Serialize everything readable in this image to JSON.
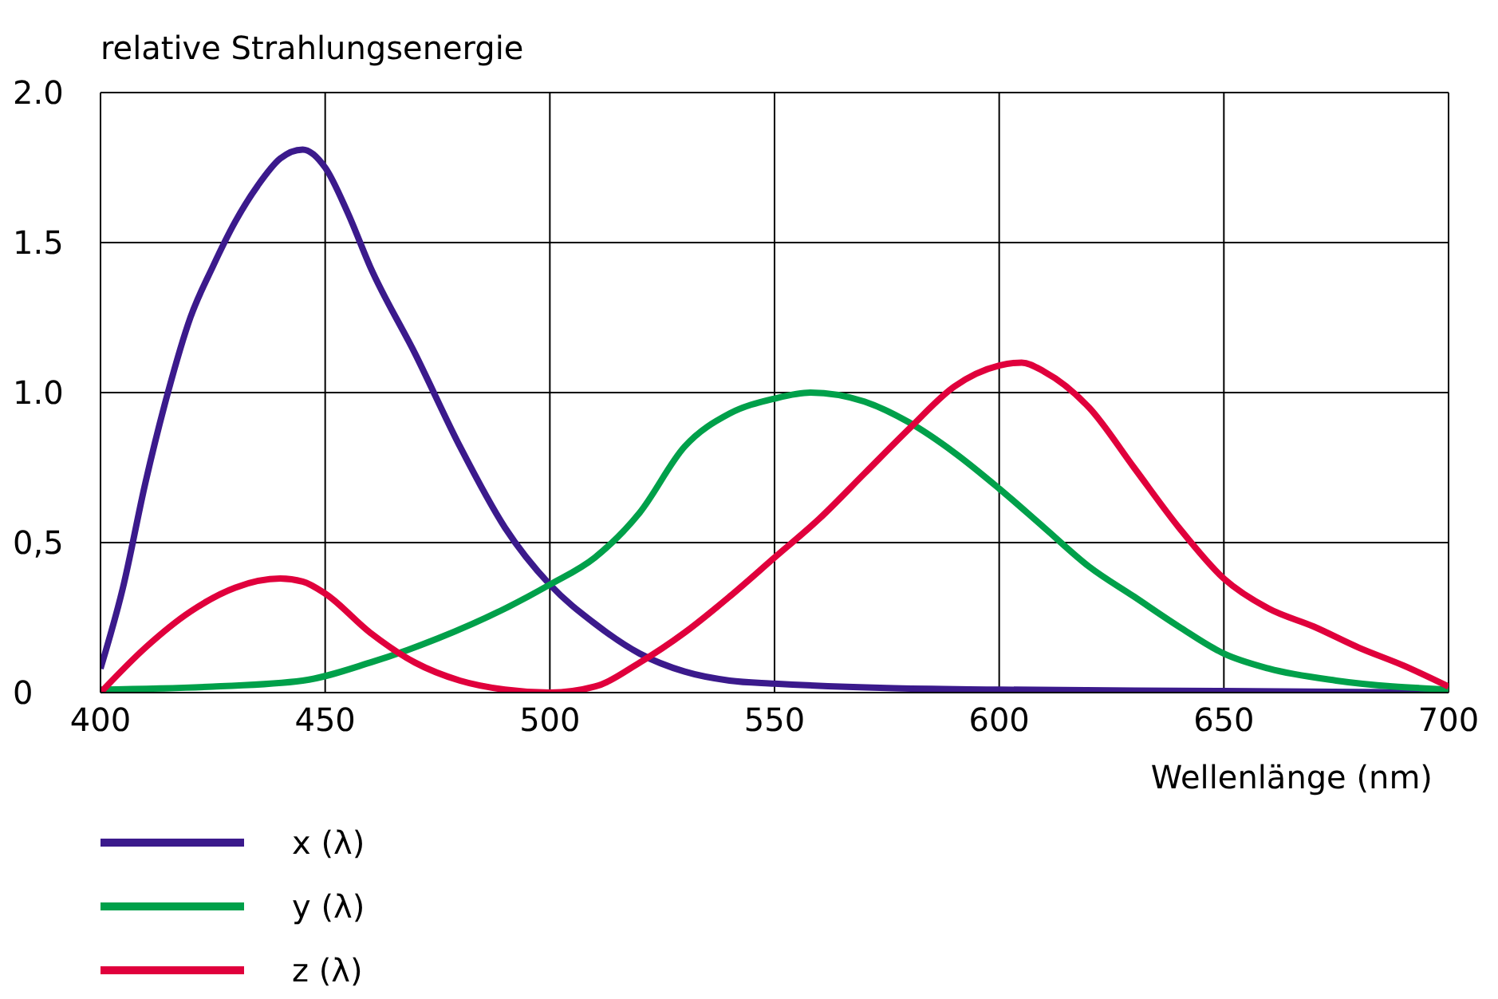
{
  "chart_data": {
    "type": "line",
    "ylabel": "relative Strahlungsenergie",
    "xlabel": "Wellenlänge (nm)",
    "xlim": [
      400,
      700
    ],
    "xticks": [
      400,
      450,
      500,
      550,
      600,
      650,
      700
    ],
    "ylim": [
      0,
      2.0
    ],
    "yticks": [
      0,
      {
        "value": 0.5,
        "label": "0,5"
      },
      {
        "value": 1.0,
        "label": "1.0"
      },
      1.5,
      {
        "value": 2.0,
        "label": "2.0"
      }
    ],
    "grid": true,
    "legend": "bottom left",
    "series": [
      {
        "name": "x (λ)",
        "color": "#3b1a8c",
        "x": [
          400,
          405,
          410,
          415,
          420,
          425,
          430,
          435,
          440,
          445,
          450,
          455,
          460,
          470,
          480,
          490,
          500,
          510,
          520,
          530,
          540,
          550,
          575,
          600,
          650,
          700
        ],
        "values": [
          0.08,
          0.35,
          0.7,
          1.0,
          1.25,
          1.42,
          1.57,
          1.69,
          1.78,
          1.81,
          1.75,
          1.6,
          1.42,
          1.13,
          0.82,
          0.55,
          0.36,
          0.23,
          0.13,
          0.07,
          0.04,
          0.03,
          0.015,
          0.01,
          0.005,
          0
        ]
      },
      {
        "name": "y (λ)",
        "color": "#00a04a",
        "x": [
          400,
          425,
          445,
          460,
          475,
          490,
          500,
          510,
          520,
          530,
          540,
          550,
          558,
          570,
          580,
          590,
          600,
          610,
          620,
          630,
          640,
          650,
          660,
          675,
          700
        ],
        "values": [
          0.01,
          0.02,
          0.04,
          0.1,
          0.18,
          0.28,
          0.36,
          0.45,
          0.6,
          0.82,
          0.93,
          0.98,
          1.0,
          0.97,
          0.9,
          0.8,
          0.68,
          0.55,
          0.42,
          0.32,
          0.22,
          0.13,
          0.08,
          0.04,
          0.01
        ]
      },
      {
        "name": "z (λ)",
        "color": "#e0003c",
        "x": [
          400,
          410,
          420,
          430,
          440,
          445,
          450,
          460,
          470,
          480,
          490,
          500,
          510,
          520,
          530,
          540,
          550,
          560,
          570,
          580,
          590,
          600,
          605,
          610,
          620,
          630,
          640,
          650,
          660,
          670,
          680,
          690,
          700
        ],
        "values": [
          0.0,
          0.15,
          0.27,
          0.35,
          0.38,
          0.37,
          0.33,
          0.2,
          0.1,
          0.04,
          0.01,
          0.0,
          0.02,
          0.1,
          0.2,
          0.32,
          0.45,
          0.58,
          0.73,
          0.88,
          1.02,
          1.09,
          1.1,
          1.07,
          0.95,
          0.75,
          0.55,
          0.38,
          0.28,
          0.22,
          0.15,
          0.09,
          0.02
        ]
      }
    ]
  }
}
